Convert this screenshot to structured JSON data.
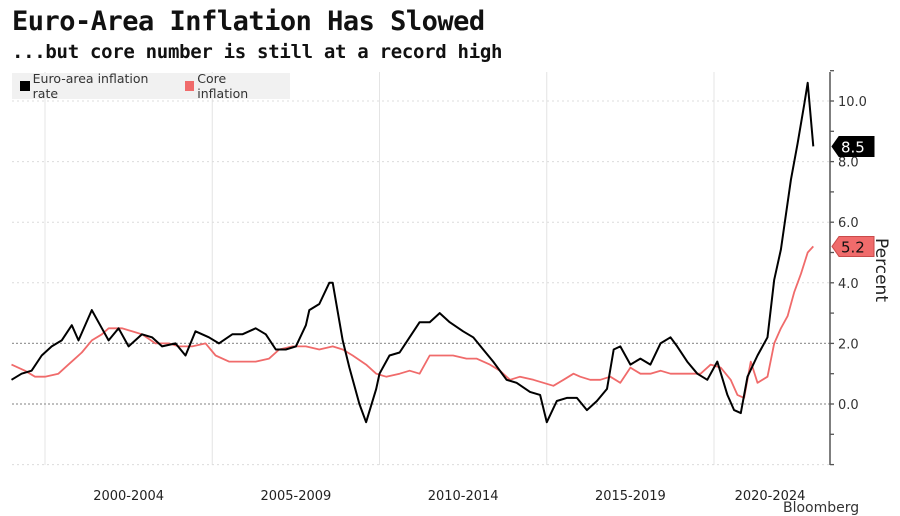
{
  "title": "Euro-Area Inflation Has Slowed",
  "subtitle": "...but core number is still at a record high",
  "source": "Bloomberg",
  "colors": {
    "headline": "#000000",
    "core": "#f06b6b",
    "grid": "#d6d6d6",
    "axis": "#444444"
  },
  "chart_data": {
    "type": "line",
    "title": "Euro-Area Inflation Has Slowed",
    "subtitle": "...but core number is still at a record high",
    "xlabel": "",
    "ylabel": "Percent",
    "xlim": [
      1999.0,
      2023.0
    ],
    "ylim": [
      -2.0,
      11.0
    ],
    "y_ticks": [
      0.0,
      2.0,
      4.0,
      6.0,
      8.0,
      10.0
    ],
    "y_tick_labels": [
      "0.0",
      "2.0",
      "4.0",
      "6.0",
      "8.0",
      "10.0"
    ],
    "x_tick_labels": [
      {
        "label": "2000-2004",
        "center": 2002.5
      },
      {
        "label": "2005-2009",
        "center": 2007.5
      },
      {
        "label": "2010-2014",
        "center": 2012.5
      },
      {
        "label": "2015-2019",
        "center": 2017.5
      },
      {
        "label": "2020-2024",
        "center": 2022.5
      }
    ],
    "x_gridlines": [
      2000,
      2005,
      2010,
      2015,
      2020
    ],
    "grid": true,
    "legend_position": "top-left",
    "series": [
      {
        "name": "Euro-area inflation rate",
        "color": "#000000",
        "last_value_label": "8.5",
        "x": [
          1999.0,
          1999.3,
          1999.6,
          1999.9,
          2000.2,
          2000.5,
          2000.8,
          2001.0,
          2001.4,
          2001.7,
          2001.9,
          2002.2,
          2002.5,
          2002.9,
          2003.2,
          2003.5,
          2003.9,
          2004.2,
          2004.5,
          2004.9,
          2005.2,
          2005.6,
          2005.9,
          2006.3,
          2006.6,
          2006.9,
          2007.2,
          2007.5,
          2007.8,
          2007.9,
          2008.2,
          2008.5,
          2008.6,
          2008.9,
          2009.1,
          2009.4,
          2009.6,
          2009.9,
          2010.0,
          2010.3,
          2010.6,
          2010.9,
          2011.2,
          2011.5,
          2011.8,
          2012.1,
          2012.5,
          2012.8,
          2013.1,
          2013.4,
          2013.8,
          2014.1,
          2014.5,
          2014.8,
          2015.0,
          2015.3,
          2015.6,
          2015.9,
          2016.2,
          2016.5,
          2016.8,
          2017.0,
          2017.2,
          2017.5,
          2017.8,
          2018.1,
          2018.4,
          2018.7,
          2018.9,
          2019.2,
          2019.5,
          2019.8,
          2020.1,
          2020.4,
          2020.6,
          2020.8,
          2021.0,
          2021.3,
          2021.6,
          2021.8,
          2022.0,
          2022.3,
          2022.5,
          2022.7,
          2022.8,
          2022.97
        ],
        "values": [
          0.8,
          1.0,
          1.1,
          1.6,
          1.9,
          2.1,
          2.6,
          2.1,
          3.1,
          2.5,
          2.1,
          2.5,
          1.9,
          2.3,
          2.2,
          1.9,
          2.0,
          1.6,
          2.4,
          2.2,
          2.0,
          2.3,
          2.3,
          2.5,
          2.3,
          1.8,
          1.8,
          1.9,
          2.6,
          3.1,
          3.3,
          4.0,
          4.0,
          2.1,
          1.2,
          0.0,
          -0.6,
          0.5,
          1.0,
          1.6,
          1.7,
          2.2,
          2.7,
          2.7,
          3.0,
          2.7,
          2.4,
          2.2,
          1.8,
          1.4,
          0.8,
          0.7,
          0.4,
          0.3,
          -0.6,
          0.1,
          0.2,
          0.2,
          -0.2,
          0.1,
          0.5,
          1.8,
          1.9,
          1.3,
          1.5,
          1.3,
          2.0,
          2.2,
          1.9,
          1.4,
          1.0,
          0.8,
          1.4,
          0.3,
          -0.2,
          -0.3,
          0.9,
          1.6,
          2.2,
          4.1,
          5.1,
          7.4,
          8.6,
          9.9,
          10.6,
          8.5
        ]
      },
      {
        "name": "Core inflation",
        "color": "#f06b6b",
        "last_value_label": "5.2",
        "x": [
          1999.0,
          1999.4,
          1999.7,
          2000.0,
          2000.4,
          2000.7,
          2000.9,
          2001.1,
          2001.4,
          2001.7,
          2001.9,
          2002.3,
          2002.6,
          2002.9,
          2003.3,
          2003.7,
          2004.0,
          2004.4,
          2004.8,
          2005.1,
          2005.5,
          2005.9,
          2006.3,
          2006.7,
          2007.0,
          2007.4,
          2007.8,
          2008.2,
          2008.6,
          2008.9,
          2009.2,
          2009.6,
          2009.9,
          2010.2,
          2010.6,
          2010.9,
          2011.2,
          2011.5,
          2011.8,
          2012.2,
          2012.6,
          2012.9,
          2013.3,
          2013.6,
          2013.9,
          2014.2,
          2014.6,
          2014.9,
          2015.2,
          2015.5,
          2015.8,
          2016.0,
          2016.3,
          2016.6,
          2016.9,
          2017.2,
          2017.5,
          2017.8,
          2018.1,
          2018.4,
          2018.7,
          2019.0,
          2019.3,
          2019.6,
          2019.9,
          2020.2,
          2020.5,
          2020.7,
          2020.9,
          2021.1,
          2021.3,
          2021.6,
          2021.8,
          2022.0,
          2022.2,
          2022.4,
          2022.6,
          2022.8,
          2022.97
        ],
        "values": [
          1.3,
          1.1,
          0.9,
          0.9,
          1.0,
          1.3,
          1.5,
          1.7,
          2.1,
          2.3,
          2.5,
          2.5,
          2.4,
          2.3,
          2.0,
          2.0,
          1.9,
          1.9,
          2.0,
          1.6,
          1.4,
          1.4,
          1.4,
          1.5,
          1.8,
          1.9,
          1.9,
          1.8,
          1.9,
          1.8,
          1.6,
          1.3,
          1.0,
          0.9,
          1.0,
          1.1,
          1.0,
          1.6,
          1.6,
          1.6,
          1.5,
          1.5,
          1.3,
          1.1,
          0.8,
          0.9,
          0.8,
          0.7,
          0.6,
          0.8,
          1.0,
          0.9,
          0.8,
          0.8,
          0.9,
          0.7,
          1.2,
          1.0,
          1.0,
          1.1,
          1.0,
          1.0,
          1.0,
          1.0,
          1.3,
          1.2,
          0.8,
          0.3,
          0.2,
          1.4,
          0.7,
          0.9,
          2.0,
          2.5,
          2.9,
          3.7,
          4.3,
          5.0,
          5.2
        ]
      }
    ]
  }
}
